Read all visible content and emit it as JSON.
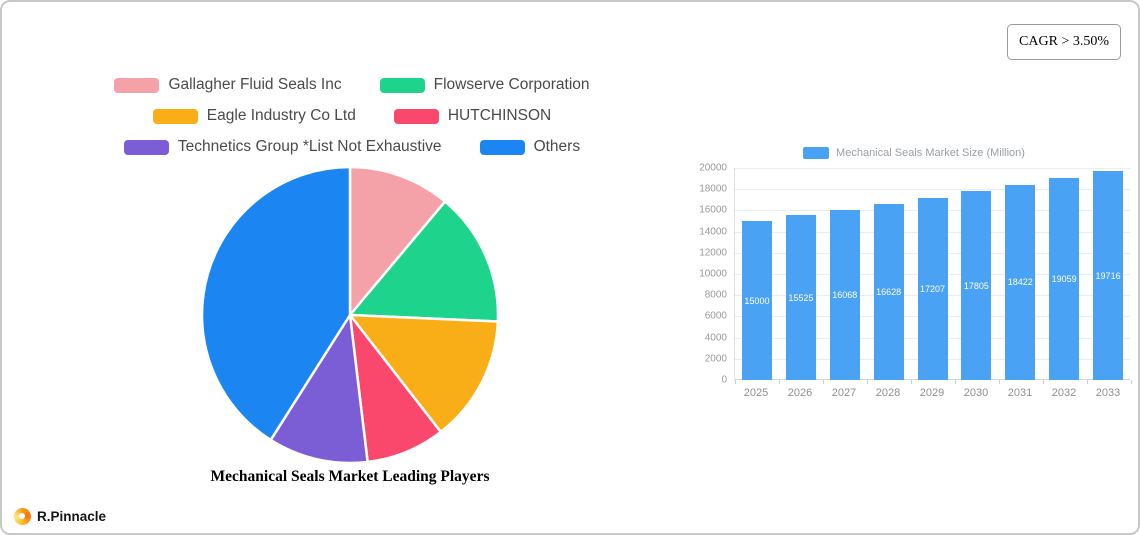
{
  "cagr_badge": {
    "label": "CAGR > 3.50%"
  },
  "logo": {
    "text": "R.Pinnacle"
  },
  "chart_data": [
    {
      "type": "pie",
      "title": "Mechanical Seals Market Leading Players",
      "labels": [
        "Gallagher Fluid Seals Inc",
        "Flowserve Corporation",
        "Eagle Industry Co  Ltd",
        "HUTCHINSON",
        "Technetics Group *List Not Exhaustive",
        "Others"
      ],
      "values": [
        11.1,
        14.6,
        13.8,
        8.6,
        10.9,
        41.0
      ],
      "colors": [
        "#f5a1a8",
        "#1ed38b",
        "#f9ae17",
        "#f9486b",
        "#7b5dd6",
        "#1b86f2"
      ],
      "legend_position": "top"
    },
    {
      "type": "bar",
      "legend_label": "Mechanical Seals Market Size (Million)",
      "categories": [
        "2025",
        "2026",
        "2027",
        "2028",
        "2029",
        "2030",
        "2031",
        "2032",
        "2033"
      ],
      "values": [
        15000,
        15525,
        16068,
        16628,
        17207,
        17805,
        18422,
        19059,
        19716
      ],
      "ylim": [
        0,
        20000
      ],
      "ytick_step": 2000,
      "bar_color": "#4aa2f5",
      "grid": true,
      "value_labels": true,
      "legend_position": "top"
    }
  ]
}
